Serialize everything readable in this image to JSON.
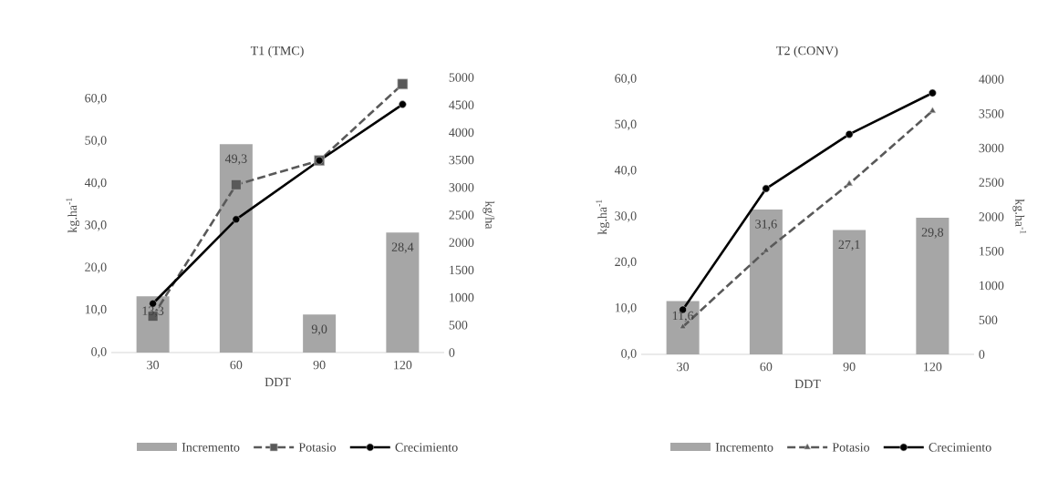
{
  "chart_data": [
    {
      "type": "bar",
      "title": "T1 (TMC)",
      "xlabel": "DDT",
      "ylabel": "kg.ha$^{-1}$",
      "y2label": "kg/ha",
      "categories": [
        "30",
        "60",
        "90",
        "120"
      ],
      "legend": "bottom",
      "ylim": [
        0,
        65.1
      ],
      "yticks": [
        {
          "value": 0,
          "label": "0,0"
        },
        {
          "value": 10,
          "label": "10,0"
        },
        {
          "value": 20,
          "label": "20,0"
        },
        {
          "value": 30,
          "label": "30,0"
        },
        {
          "value": 40,
          "label": "40,0"
        },
        {
          "value": 50,
          "label": "50,0"
        },
        {
          "value": 60,
          "label": "60,0"
        }
      ],
      "y2lim": [
        0,
        5000
      ],
      "y2ticks": [
        0,
        500,
        1000,
        1500,
        2000,
        2500,
        3000,
        3500,
        4000,
        4500,
        5000
      ],
      "series": [
        {
          "name": "Incremento",
          "color": "#a6a6a6",
          "values": [
            13.3,
            49.3,
            9.0,
            28.4
          ],
          "value_labels": [
            "13,3",
            "49,3",
            "9,0",
            "28,4"
          ]
        },
        {
          "name": "Potasio",
          "type": "line",
          "axis": "y2",
          "color": "#595959",
          "marker": "square",
          "line_style": "dashed",
          "values": [
            660,
            3050,
            3490,
            4880
          ]
        },
        {
          "name": "Crecimiento",
          "type": "line",
          "axis": "y2",
          "color": "#000000",
          "marker": "circle",
          "line_style": "solid",
          "values": [
            890,
            2420,
            3490,
            4510
          ]
        }
      ]
    },
    {
      "type": "bar",
      "title": "T2 (CONV)",
      "xlabel": "DDT",
      "ylabel": "kg.ha$^{-1}$",
      "y2label": "kg.ha$^{-1}$",
      "categories": [
        "30",
        "60",
        "90",
        "120"
      ],
      "legend": "bottom",
      "ylim": [
        0,
        60
      ],
      "yticks": [
        {
          "value": 0,
          "label": "0,0"
        },
        {
          "value": 10,
          "label": "10,0"
        },
        {
          "value": 20,
          "label": "20,0"
        },
        {
          "value": 30,
          "label": "30,0"
        },
        {
          "value": 40,
          "label": "40,0"
        },
        {
          "value": 50,
          "label": "50,0"
        },
        {
          "value": 60,
          "label": "60,0"
        }
      ],
      "y2lim": [
        0,
        4000
      ],
      "y2ticks": [
        0,
        500,
        1000,
        1500,
        2000,
        2500,
        3000,
        3500,
        4000
      ],
      "series": [
        {
          "name": "Incremento",
          "color": "#a6a6a6",
          "values": [
            11.6,
            31.6,
            27.1,
            29.8
          ],
          "value_labels": [
            "11,6",
            "31,6",
            "27,1",
            "29,8"
          ]
        },
        {
          "name": "Potasio",
          "type": "line",
          "axis": "y2",
          "color": "#595959",
          "marker": "triangle",
          "line_style": "dashed",
          "values": [
            400,
            1510,
            2480,
            3540
          ]
        },
        {
          "name": "Crecimiento",
          "type": "line",
          "axis": "y2",
          "color": "#000000",
          "marker": "circle",
          "line_style": "solid",
          "values": [
            650,
            2410,
            3200,
            3800
          ]
        }
      ]
    }
  ]
}
